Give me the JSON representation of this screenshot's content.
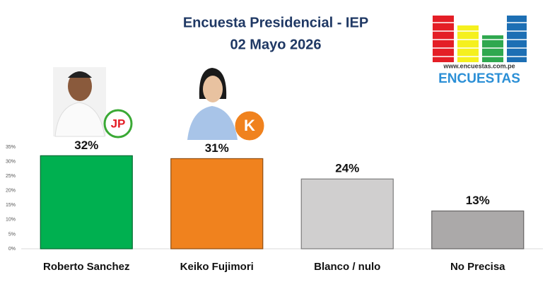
{
  "chart_data": {
    "type": "bar",
    "title": "Encuesta Presidencial - IEP",
    "subtitle": "02 Mayo 2026",
    "categories": [
      "Roberto Sanchez",
      "Keiko  Fujimori",
      "Blanco / nulo",
      "No Precisa"
    ],
    "values": [
      32,
      31,
      24,
      13
    ],
    "value_labels": [
      "32%",
      "31%",
      "24%",
      "13%"
    ],
    "colors": [
      "#00b050",
      "#f0821e",
      "#d0cfcf",
      "#aba9a9"
    ],
    "party_logos": [
      "JP",
      "K",
      null,
      null
    ],
    "ylim": [
      0,
      35
    ],
    "yticks": [
      {
        "value": 0,
        "label": "0%"
      },
      {
        "value": 5,
        "label": "5%"
      },
      {
        "value": 10,
        "label": "10%"
      },
      {
        "value": 15,
        "label": "15%"
      },
      {
        "value": 20,
        "label": "20%"
      },
      {
        "value": 25,
        "label": "25%"
      },
      {
        "value": 30,
        "label": "30%"
      },
      {
        "value": 35,
        "label": "35%"
      }
    ],
    "grid": false
  },
  "logo": {
    "url": "www.encuestas.com.pe",
    "name": "ENCUESTAS"
  }
}
